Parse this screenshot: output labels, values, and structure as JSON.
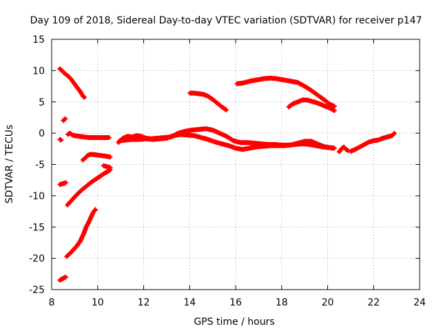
{
  "chart_data": {
    "type": "scatter",
    "title": "Day 109 of 2018, Sidereal Day-to-day VTEC variation (SDTVAR) for receiver p147",
    "xlabel": "GPS time / hours",
    "ylabel": "SDTVAR / TECUs",
    "xlim": [
      8,
      24
    ],
    "ylim": [
      -25,
      15
    ],
    "xticks": [
      8,
      10,
      12,
      14,
      16,
      18,
      20,
      22,
      24
    ],
    "yticks": [
      -25,
      -20,
      -15,
      -10,
      -5,
      0,
      5,
      10,
      15
    ],
    "grid": true,
    "marker": "+",
    "color": "#ff0000",
    "series": [
      {
        "name": "arc-1",
        "points": [
          [
            8.35,
            10.3
          ],
          [
            8.45,
            10.0
          ],
          [
            8.55,
            9.6
          ],
          [
            8.65,
            9.3
          ],
          [
            8.75,
            9.0
          ],
          [
            8.85,
            8.6
          ],
          [
            8.95,
            8.1
          ],
          [
            9.05,
            7.6
          ],
          [
            9.15,
            7.1
          ],
          [
            9.25,
            6.6
          ],
          [
            9.35,
            6.0
          ],
          [
            9.42,
            5.7
          ]
        ]
      },
      {
        "name": "arc-2",
        "points": [
          [
            8.5,
            2.0
          ],
          [
            8.55,
            2.2
          ],
          [
            8.6,
            2.3
          ]
        ]
      },
      {
        "name": "arc-3",
        "points": [
          [
            8.35,
            -1.0
          ],
          [
            8.42,
            -1.1
          ]
        ]
      },
      {
        "name": "arc-4",
        "points": [
          [
            8.7,
            -0.2
          ],
          [
            8.8,
            0.0
          ],
          [
            8.9,
            -0.3
          ],
          [
            9.0,
            -0.4
          ],
          [
            9.2,
            -0.5
          ],
          [
            9.4,
            -0.6
          ],
          [
            9.6,
            -0.7
          ],
          [
            9.8,
            -0.7
          ],
          [
            10.0,
            -0.7
          ],
          [
            10.2,
            -0.7
          ],
          [
            10.4,
            -0.7
          ],
          [
            10.5,
            -0.7
          ]
        ]
      },
      {
        "name": "arc-5",
        "points": [
          [
            9.35,
            -4.3
          ],
          [
            9.45,
            -4.0
          ],
          [
            9.55,
            -3.6
          ],
          [
            9.65,
            -3.4
          ],
          [
            9.8,
            -3.4
          ],
          [
            10.0,
            -3.5
          ],
          [
            10.2,
            -3.6
          ],
          [
            10.4,
            -3.7
          ],
          [
            10.55,
            -3.8
          ]
        ]
      },
      {
        "name": "arc-6",
        "points": [
          [
            10.25,
            -5.2
          ],
          [
            10.35,
            -5.3
          ],
          [
            10.45,
            -5.4
          ],
          [
            10.55,
            -5.5
          ]
        ]
      },
      {
        "name": "arc-7",
        "points": [
          [
            8.35,
            -8.2
          ],
          [
            8.45,
            -8.1
          ],
          [
            8.55,
            -8.0
          ],
          [
            8.62,
            -7.9
          ]
        ]
      },
      {
        "name": "arc-8",
        "points": [
          [
            8.68,
            -11.5
          ],
          [
            8.8,
            -11.0
          ],
          [
            8.95,
            -10.4
          ],
          [
            9.1,
            -9.8
          ],
          [
            9.3,
            -9.1
          ],
          [
            9.5,
            -8.5
          ],
          [
            9.7,
            -7.9
          ],
          [
            9.9,
            -7.4
          ],
          [
            10.1,
            -6.9
          ],
          [
            10.3,
            -6.4
          ],
          [
            10.5,
            -6.0
          ],
          [
            10.55,
            -5.8
          ]
        ]
      },
      {
        "name": "arc-9",
        "points": [
          [
            8.65,
            -19.7
          ],
          [
            8.8,
            -19.2
          ],
          [
            8.95,
            -18.6
          ],
          [
            9.1,
            -18.0
          ],
          [
            9.25,
            -17.2
          ],
          [
            9.4,
            -16.0
          ],
          [
            9.5,
            -15.0
          ],
          [
            9.6,
            -14.3
          ],
          [
            9.7,
            -13.5
          ],
          [
            9.8,
            -12.7
          ],
          [
            9.9,
            -12.2
          ]
        ]
      },
      {
        "name": "arc-10",
        "points": [
          [
            8.35,
            -23.5
          ],
          [
            8.45,
            -23.3
          ],
          [
            8.55,
            -23.1
          ],
          [
            8.62,
            -23.0
          ]
        ]
      },
      {
        "name": "arc-11",
        "points": [
          [
            10.9,
            -1.5
          ],
          [
            11.1,
            -0.8
          ],
          [
            11.3,
            -0.5
          ],
          [
            11.5,
            -0.6
          ],
          [
            11.7,
            -0.4
          ],
          [
            11.9,
            -0.5
          ],
          [
            12.1,
            -0.8
          ],
          [
            12.3,
            -0.9
          ],
          [
            12.6,
            -0.8
          ],
          [
            12.9,
            -0.7
          ],
          [
            13.2,
            -0.6
          ],
          [
            13.5,
            0.0
          ],
          [
            13.8,
            0.3
          ],
          [
            14.1,
            0.5
          ],
          [
            14.4,
            0.6
          ],
          [
            14.7,
            0.7
          ],
          [
            15.0,
            0.5
          ],
          [
            15.3,
            0.0
          ],
          [
            15.6,
            -0.5
          ],
          [
            15.9,
            -1.2
          ],
          [
            16.2,
            -1.5
          ],
          [
            16.5,
            -1.5
          ],
          [
            16.8,
            -1.6
          ],
          [
            17.1,
            -1.7
          ],
          [
            17.4,
            -1.8
          ],
          [
            17.7,
            -1.8
          ],
          [
            18.0,
            -1.9
          ],
          [
            18.3,
            -1.9
          ],
          [
            18.6,
            -1.8
          ],
          [
            18.9,
            -1.7
          ],
          [
            19.2,
            -1.8
          ],
          [
            19.5,
            -2.0
          ],
          [
            19.8,
            -2.2
          ],
          [
            20.1,
            -2.3
          ],
          [
            20.3,
            -2.4
          ]
        ]
      },
      {
        "name": "arc-12",
        "points": [
          [
            10.95,
            -1.2
          ],
          [
            11.2,
            -1.1
          ],
          [
            11.5,
            -1.0
          ],
          [
            11.8,
            -1.0
          ],
          [
            12.1,
            -0.9
          ],
          [
            12.4,
            -1.0
          ],
          [
            12.7,
            -0.9
          ],
          [
            13.0,
            -0.8
          ],
          [
            13.3,
            -0.4
          ],
          [
            13.6,
            -0.2
          ],
          [
            13.9,
            -0.3
          ],
          [
            14.2,
            -0.4
          ],
          [
            14.5,
            -0.7
          ],
          [
            14.8,
            -1.0
          ],
          [
            15.1,
            -1.4
          ],
          [
            15.4,
            -1.7
          ],
          [
            15.7,
            -2.0
          ],
          [
            16.0,
            -2.4
          ],
          [
            16.3,
            -2.6
          ],
          [
            16.6,
            -2.4
          ],
          [
            16.9,
            -2.2
          ],
          [
            17.2,
            -2.1
          ],
          [
            17.5,
            -2.0
          ],
          [
            17.8,
            -2.0
          ],
          [
            18.1,
            -2.0
          ],
          [
            18.4,
            -1.9
          ],
          [
            18.7,
            -1.6
          ],
          [
            19.0,
            -1.3
          ],
          [
            19.3,
            -1.3
          ],
          [
            19.6,
            -1.8
          ],
          [
            19.9,
            -2.2
          ],
          [
            20.2,
            -2.4
          ]
        ]
      },
      {
        "name": "arc-13",
        "points": [
          [
            14.0,
            6.4
          ],
          [
            14.2,
            6.4
          ],
          [
            14.4,
            6.3
          ],
          [
            14.6,
            6.2
          ],
          [
            14.8,
            5.9
          ],
          [
            15.0,
            5.4
          ],
          [
            15.2,
            4.8
          ],
          [
            15.4,
            4.2
          ],
          [
            15.6,
            3.7
          ]
        ]
      },
      {
        "name": "arc-14",
        "points": [
          [
            16.05,
            7.9
          ],
          [
            16.3,
            8.0
          ],
          [
            16.6,
            8.3
          ],
          [
            16.9,
            8.5
          ],
          [
            17.2,
            8.7
          ],
          [
            17.5,
            8.8
          ],
          [
            17.8,
            8.7
          ],
          [
            18.1,
            8.5
          ],
          [
            18.4,
            8.3
          ],
          [
            18.7,
            8.1
          ],
          [
            19.0,
            7.5
          ],
          [
            19.3,
            6.8
          ],
          [
            19.6,
            6.0
          ],
          [
            19.9,
            5.2
          ],
          [
            20.1,
            4.6
          ],
          [
            20.3,
            4.3
          ]
        ]
      },
      {
        "name": "arc-15",
        "points": [
          [
            18.3,
            4.2
          ],
          [
            18.5,
            4.7
          ],
          [
            18.7,
            5.0
          ],
          [
            18.9,
            5.3
          ],
          [
            19.1,
            5.3
          ],
          [
            19.3,
            5.1
          ],
          [
            19.5,
            4.9
          ],
          [
            19.7,
            4.6
          ],
          [
            19.9,
            4.3
          ],
          [
            20.1,
            4.0
          ],
          [
            20.3,
            3.6
          ]
        ]
      },
      {
        "name": "arc-16",
        "points": [
          [
            20.5,
            -3.0
          ],
          [
            20.6,
            -2.5
          ],
          [
            20.7,
            -2.2
          ],
          [
            20.8,
            -2.6
          ],
          [
            20.9,
            -2.8
          ]
        ]
      },
      {
        "name": "arc-17",
        "points": [
          [
            21.0,
            -2.9
          ],
          [
            21.2,
            -2.6
          ],
          [
            21.4,
            -2.2
          ],
          [
            21.6,
            -1.8
          ],
          [
            21.8,
            -1.4
          ],
          [
            22.0,
            -1.2
          ],
          [
            22.2,
            -1.1
          ],
          [
            22.4,
            -0.8
          ],
          [
            22.6,
            -0.6
          ],
          [
            22.8,
            -0.4
          ],
          [
            22.9,
            0.0
          ]
        ]
      }
    ]
  }
}
